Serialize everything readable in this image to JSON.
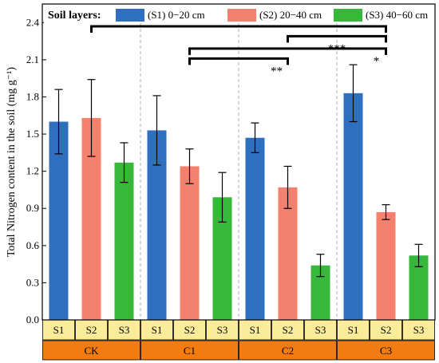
{
  "chart_data": {
    "type": "bar",
    "ylabel": "Total Nitrogen content in the soil (mg g⁻¹)",
    "ylim": [
      0,
      2.55
    ],
    "yticks": [
      "0.0",
      "0.3",
      "0.6",
      "0.9",
      "1.2",
      "1.5",
      "1.8",
      "2.1",
      "2.4"
    ],
    "groups": [
      "CK",
      "C1",
      "C2",
      "C3"
    ],
    "layer_labels": [
      "S1",
      "S2",
      "S3"
    ],
    "legend_title": "Soil layers:",
    "series": [
      {
        "name": "(S1) 0−20 cm",
        "color": "#2e6fbf",
        "values": [
          1.6,
          1.53,
          1.47,
          1.83
        ],
        "errors": [
          0.26,
          0.28,
          0.12,
          0.23
        ]
      },
      {
        "name": "(S2) 20−40 cm",
        "color": "#f4806e",
        "values": [
          1.63,
          1.24,
          1.07,
          0.87
        ],
        "errors": [
          0.31,
          0.14,
          0.17,
          0.06
        ]
      },
      {
        "name": "(S3) 40−60 cm",
        "color": "#37b83a",
        "values": [
          1.27,
          0.99,
          0.44,
          0.52
        ],
        "errors": [
          0.16,
          0.2,
          0.09,
          0.09
        ]
      }
    ],
    "significance": [
      {
        "label": "",
        "from_group": 0,
        "to_group": 3,
        "y": 2.37
      },
      {
        "label": "***",
        "from_group": 2,
        "to_group": 3,
        "y": 2.29
      },
      {
        "label": "*",
        "from_group": 1,
        "to_group": 3,
        "y": 2.19
      },
      {
        "label": "**",
        "from_group": 1,
        "to_group": 2,
        "y": 2.11
      }
    ],
    "grid": false,
    "legend_position": "top"
  },
  "colors": {
    "layer_band": "#fbec9a",
    "group_band": "#f27c12",
    "divider": "#b0b0b0"
  }
}
